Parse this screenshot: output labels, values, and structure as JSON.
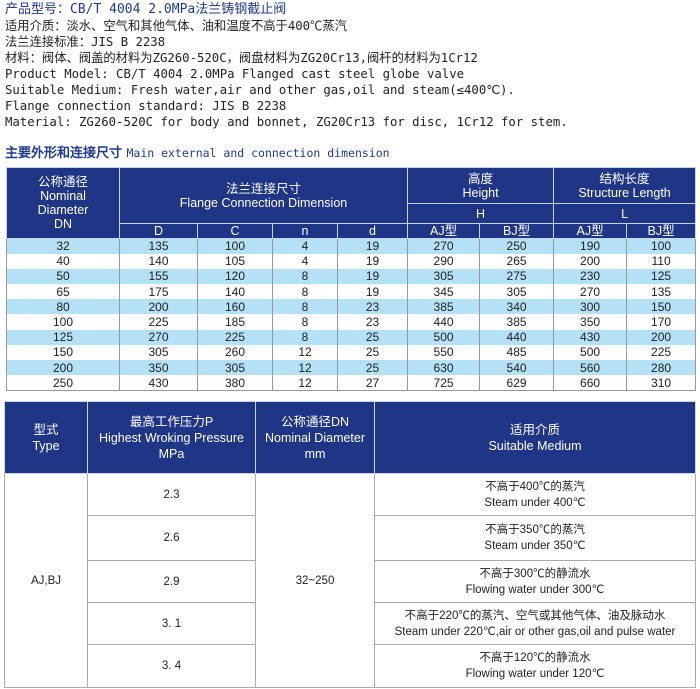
{
  "intro": {
    "title": "产品型号：CB/T 4004 2.0MPa法兰铸钢截止阀",
    "lines": [
      "适用介质：淡水、空气和其他气体、油和温度不高于400℃蒸汽",
      "法兰连接标准：JIS B 2238",
      "材料：阀体、阀盖的材料为ZG260-520C，阀盘材料为ZG20Cr13,阀杆的材料为1Cr12",
      "Product Model: CB/T 4004 2.0MPa Flanged cast steel globe valve",
      "Suitable Medium: Fresh water,air and other gas,oil and steam(≤400℃).",
      "Flange connection standard: JIS B 2238",
      "Material: ZG260-520C for body and bonnet, ZG20Cr13 for disc, 1Cr12 for stem."
    ]
  },
  "section": {
    "cn": "主要外形和连接尺寸",
    "en": "Main external and connection  dimension"
  },
  "colors": {
    "header": "#1f3586",
    "row_alt": "#b5e1f6",
    "title_text": "#1f3b8e"
  },
  "dim_table": {
    "h_dn": [
      "公称通径",
      "Nominal",
      "Diameter",
      "DN"
    ],
    "h_flange": [
      "法兰连接尺寸",
      "Flange Connection Dimension"
    ],
    "h_height": [
      "高度",
      "Height"
    ],
    "h_length": [
      "结构长度",
      "Structure Length"
    ],
    "h_H": "H",
    "h_L": "L",
    "sub": [
      "D",
      "C",
      "n",
      "d",
      "AJ型",
      "BJ型",
      "AJ型",
      "BJ型"
    ],
    "rows": [
      [
        "32",
        "135",
        "100",
        "4",
        "19",
        "270",
        "250",
        "190",
        "100"
      ],
      [
        "40",
        "140",
        "105",
        "4",
        "19",
        "290",
        "265",
        "200",
        "110"
      ],
      [
        "50",
        "155",
        "120",
        "8",
        "19",
        "305",
        "275",
        "230",
        "125"
      ],
      [
        "65",
        "175",
        "140",
        "8",
        "19",
        "345",
        "305",
        "270",
        "135"
      ],
      [
        "80",
        "200",
        "160",
        "8",
        "23",
        "385",
        "340",
        "300",
        "150"
      ],
      [
        "100",
        "225",
        "185",
        "8",
        "23",
        "440",
        "385",
        "350",
        "170"
      ],
      [
        "125",
        "270",
        "225",
        "8",
        "25",
        "500",
        "440",
        "430",
        "200"
      ],
      [
        "150",
        "305",
        "260",
        "12",
        "25",
        "550",
        "485",
        "500",
        "225"
      ],
      [
        "200",
        "350",
        "305",
        "12",
        "25",
        "630",
        "540",
        "560",
        "280"
      ],
      [
        "250",
        "430",
        "380",
        "12",
        "27",
        "725",
        "629",
        "660",
        "310"
      ]
    ]
  },
  "medium_table": {
    "h_type": [
      "型式",
      "Type"
    ],
    "h_pressure": [
      "最高工作压力P",
      "Highest Wroking Pressure",
      "MPa"
    ],
    "h_dn": [
      "公称通径DN",
      "Nominal Diameter",
      "mm"
    ],
    "h_medium": [
      "适用介质",
      "Suitable Medium"
    ],
    "type": "AJ,BJ",
    "dn": "32~250",
    "rows": [
      {
        "p": "2.3",
        "cn": "不高于400℃的蒸汽",
        "en": "Steam under 400℃"
      },
      {
        "p": "2.6",
        "cn": "不高于350℃的蒸汽",
        "en": "Steam under 350℃"
      },
      {
        "p": "2.9",
        "cn": "不高于300℃的静流水",
        "en": "Flowing water under 300℃"
      },
      {
        "p": "3. 1",
        "cn": "不高于220℃的蒸汽、空气或其他气体、油及脉动水",
        "en": "Steam under 220℃,air or other gas,oil and pulse water"
      },
      {
        "p": "3. 4",
        "cn": "不高于120℃的静流水",
        "en": "Flowing water under 120℃"
      }
    ]
  }
}
